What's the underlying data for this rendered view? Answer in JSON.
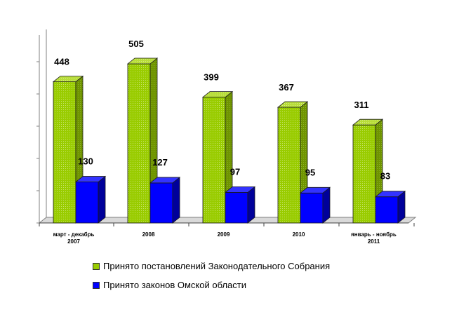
{
  "chart_data": {
    "type": "bar",
    "categories": [
      "март - декабрь 2007",
      "2008",
      "2009",
      "2010",
      "январь - ноябрь 2011"
    ],
    "category_lines": [
      [
        "март - декабрь",
        "2007"
      ],
      [
        "2008"
      ],
      [
        "2009"
      ],
      [
        "2010"
      ],
      [
        "январь - ноябрь",
        "2011"
      ]
    ],
    "series": [
      {
        "name": "Принято постановлений Законодательного Собрания",
        "values": [
          448,
          505,
          399,
          367,
          311
        ],
        "color": "#99cc00"
      },
      {
        "name": "Принято законов Омской области",
        "values": [
          130,
          127,
          97,
          95,
          83
        ],
        "color": "#0000ff"
      }
    ],
    "ylim": [
      0,
      600
    ],
    "grid": false,
    "style": "3d",
    "legend_position": "bottom"
  },
  "legend": {
    "items": [
      {
        "label": "Принято постановлений Законодательного Собрания",
        "color": "#99cc00"
      },
      {
        "label": "Принято законов Омской области",
        "color": "#0000ff"
      }
    ]
  }
}
